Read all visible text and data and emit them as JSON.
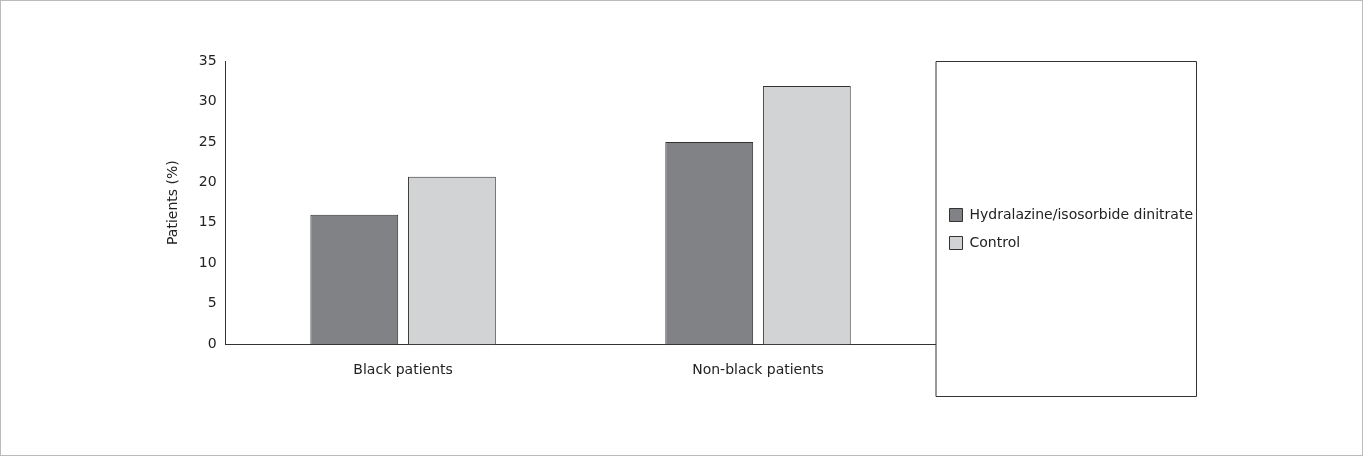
{
  "chart_data": {
    "type": "bar",
    "ylabel": "Patients (%)",
    "categories": [
      "Black patients",
      "Non-black patients"
    ],
    "series": [
      {
        "name": "Hydralazine/isosorbide dinitrate",
        "color": "#808285",
        "values": [
          16,
          25
        ]
      },
      {
        "name": "Control",
        "color": "#d1d3d4",
        "values": [
          20.7,
          31.9
        ]
      }
    ],
    "ylim": [
      0,
      35
    ],
    "yticks": [
      0,
      5,
      10,
      15,
      20,
      25,
      30,
      35
    ],
    "grid": false,
    "legend": "right"
  }
}
